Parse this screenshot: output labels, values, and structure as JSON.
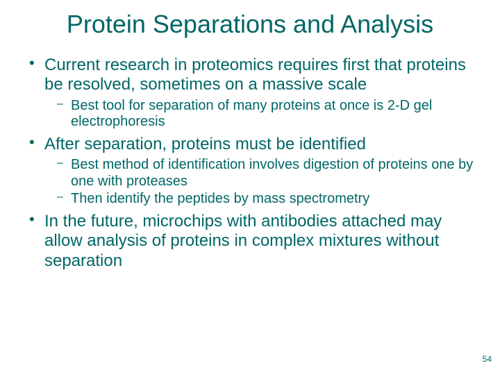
{
  "title": {
    "text": "Protein Separations and Analysis",
    "color": "#006666",
    "fontsize": 36
  },
  "body": {
    "color": "#006666",
    "level1_fontsize": 24,
    "level2_fontsize": 20,
    "bullet_color": "#006666",
    "items": [
      {
        "text": "Current research in proteomics requires first that proteins be resolved, sometimes on a massive scale",
        "sub": [
          {
            "text": "Best tool for separation of many proteins at once is 2-D gel electrophoresis"
          }
        ]
      },
      {
        "text": "After separation, proteins must be identified",
        "sub": [
          {
            "text": "Best method of identification involves digestion of proteins one by one with proteases"
          },
          {
            "text": "Then identify the peptides by mass spectrometry"
          }
        ]
      },
      {
        "text": "In the future, microchips with antibodies attached may allow analysis of proteins in complex mixtures without separation",
        "sub": []
      }
    ]
  },
  "page_number": {
    "text": "54",
    "color": "#006666",
    "fontsize": 12
  },
  "background_color": "#ffffff"
}
